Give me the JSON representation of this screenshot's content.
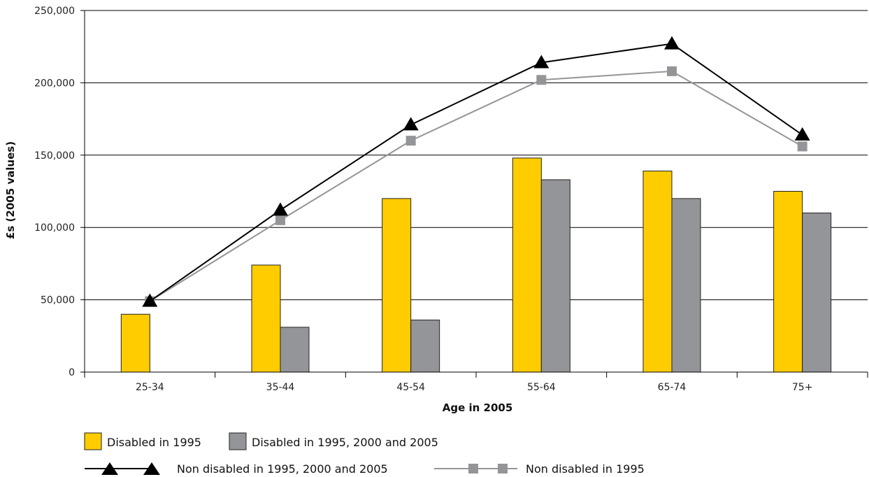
{
  "chart_data": {
    "type": "bar",
    "title": "",
    "xlabel": "Age in 2005",
    "ylabel": "£s (2005 values)",
    "categories": [
      "25-34",
      "35-44",
      "45-54",
      "55-64",
      "65-74",
      "75+"
    ],
    "ylim": [
      0,
      250000
    ],
    "yticks": [
      0,
      50000,
      100000,
      150000,
      200000,
      250000
    ],
    "ytick_labels": [
      "0",
      "50,000",
      "100,000",
      "150,000",
      "200,000",
      "250,000"
    ],
    "grid": true,
    "legend_position": "bottom",
    "series": [
      {
        "name": "Disabled in 1995",
        "kind": "bar",
        "color": "#FFCC00",
        "values": [
          40000,
          74000,
          120000,
          148000,
          139000,
          125000
        ]
      },
      {
        "name": "Disabled in 1995, 2000 and 2005",
        "kind": "bar",
        "color": "#939598",
        "values": [
          null,
          31000,
          36000,
          133000,
          120000,
          110000
        ]
      },
      {
        "name": "Non disabled in 1995, 2000 and 2005",
        "kind": "line",
        "marker": "triangle",
        "color": "#000000",
        "values": [
          49000,
          112000,
          171000,
          214000,
          227000,
          164000
        ]
      },
      {
        "name": "Non disabled in 1995",
        "kind": "line",
        "marker": "square",
        "color": "#939598",
        "values": [
          49000,
          105000,
          160000,
          202000,
          208000,
          156000
        ]
      }
    ]
  }
}
